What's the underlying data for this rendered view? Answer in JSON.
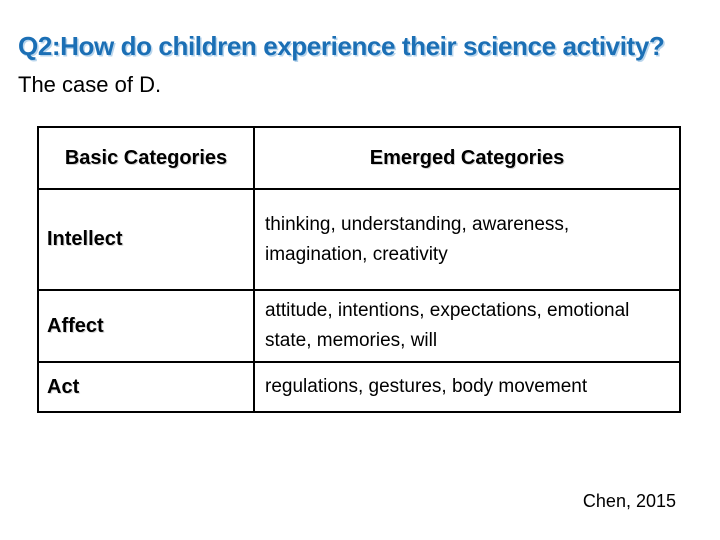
{
  "slide": {
    "title": "Q2:How do children experience their science activity?",
    "subtitle": "The case of D.",
    "citation": "Chen, 2015"
  },
  "table": {
    "headers": [
      "Basic Categories",
      "Emerged Categories"
    ],
    "rows": [
      {
        "basic": "Intellect",
        "emerged": "thinking, understanding, awareness, imagination, creativity"
      },
      {
        "basic": "Affect",
        "emerged": "attitude, intentions, expectations, emotional state, memories, will"
      },
      {
        "basic": "Act",
        "emerged": "regulations, gestures, body movement"
      }
    ]
  },
  "colors": {
    "title-blue": "#1b6fb5",
    "title-glow": "#b9d5ec",
    "text-black": "#000000",
    "border-black": "#000000"
  }
}
